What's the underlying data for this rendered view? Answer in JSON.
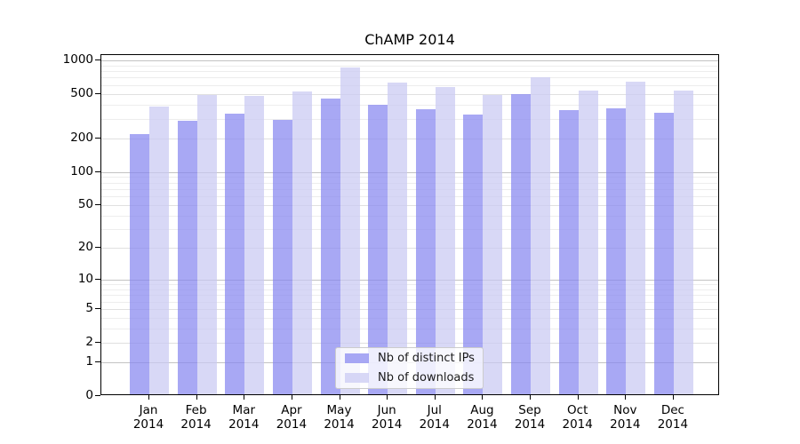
{
  "figure": {
    "background": "#ffffff",
    "text_color": "#000000"
  },
  "chart_data": {
    "type": "bar",
    "title": "ChAMP 2014",
    "categories": [
      "Jan 2014",
      "Feb 2014",
      "Mar 2014",
      "Apr 2014",
      "May 2014",
      "Jun 2014",
      "Jul 2014",
      "Aug 2014",
      "Sep 2014",
      "Oct 2014",
      "Nov 2014",
      "Dec 2014"
    ],
    "series": [
      {
        "name": "Nb of distinct IPs",
        "color": "#8686f0",
        "values": [
          209,
          276,
          319,
          282,
          441,
          386,
          352,
          315,
          478,
          345,
          357,
          325
        ]
      },
      {
        "name": "Nb of downloads",
        "color": "#c9c9f3",
        "values": [
          374,
          474,
          466,
          505,
          827,
          606,
          553,
          469,
          677,
          514,
          617,
          520
        ]
      }
    ],
    "bar_alpha": 0.72,
    "yscale": "log1p",
    "yticks": [
      0,
      1,
      2,
      5,
      10,
      20,
      50,
      100,
      200,
      500,
      1000
    ],
    "minor_gridlines": [
      3,
      4,
      6,
      7,
      8,
      9,
      30,
      40,
      60,
      70,
      80,
      90,
      300,
      400,
      600,
      700,
      800,
      900
    ],
    "ylim": [
      0,
      1120
    ],
    "xlabel": "",
    "ylabel": "",
    "grid": "on",
    "legend_position": "lower center"
  },
  "grid_colors": {
    "major": "#c3c3c3",
    "labeled": "#e0e0e0",
    "minor": "#ededed"
  }
}
